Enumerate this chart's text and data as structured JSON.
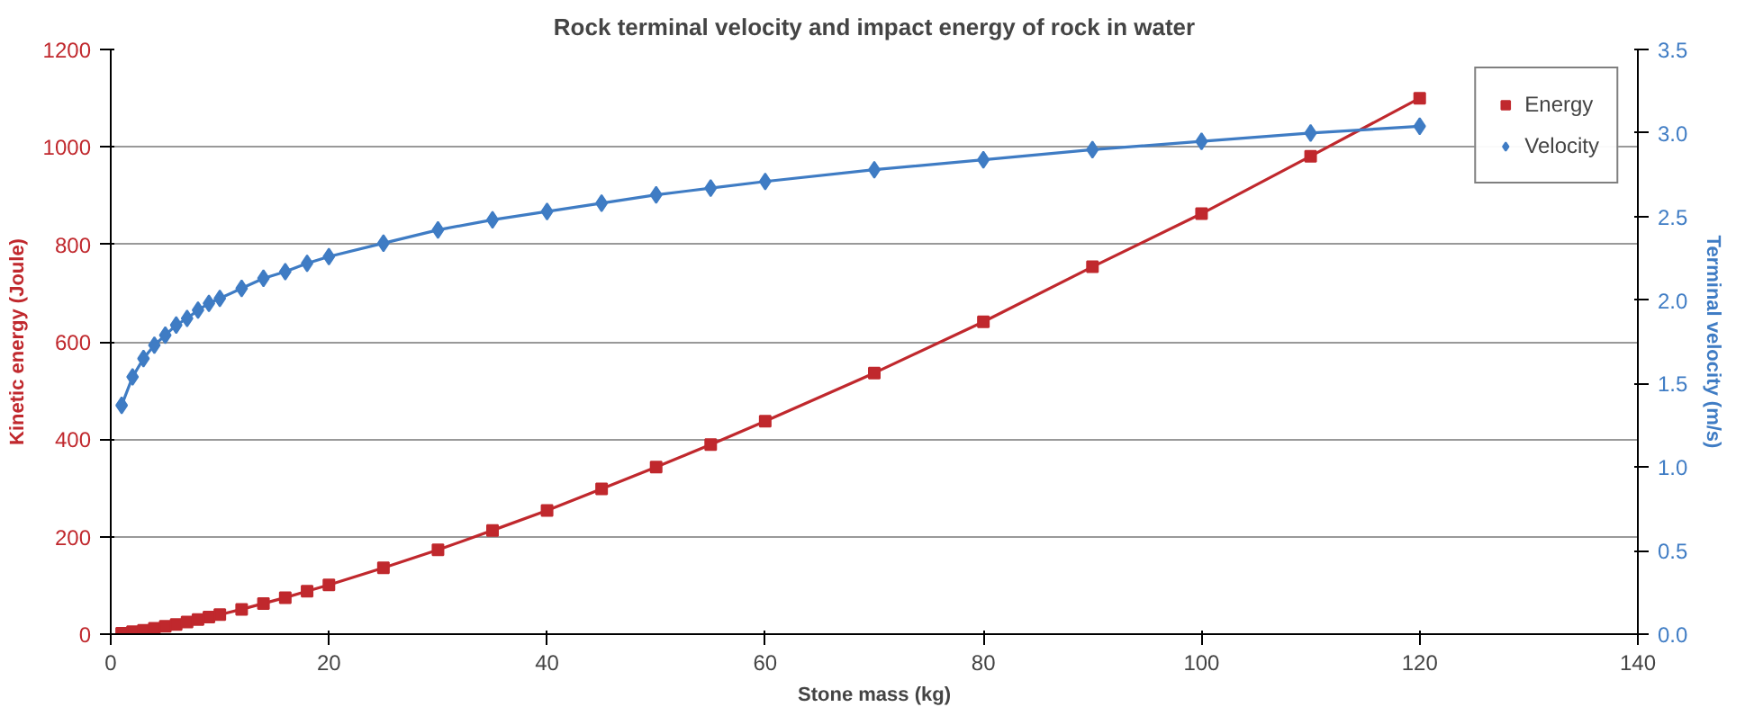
{
  "chart_data": {
    "type": "line",
    "title": "Rock terminal velocity and impact energy of rock in water",
    "xlabel": "Stone mass (kg)",
    "ylabel": "Kinetic energy (Joule)",
    "y2label": "Terminal velocity (m/s)",
    "x": [
      1,
      2,
      3,
      4,
      5,
      6,
      7,
      8,
      9,
      10,
      12,
      14,
      16,
      18,
      20,
      25,
      30,
      35,
      40,
      45,
      50,
      55,
      60,
      70,
      80,
      90,
      100,
      110,
      120
    ],
    "series": [
      {
        "name": "Energy",
        "color": "#c0282d",
        "marker": "square",
        "values": [
          2,
          5,
          8,
          12,
          16,
          20,
          25,
          30,
          35,
          40,
          51,
          63,
          75,
          88,
          101,
          136,
          173,
          213,
          254,
          298,
          343,
          389,
          437,
          536,
          641,
          754,
          863,
          981,
          1100
        ]
      },
      {
        "name": "Velocity",
        "color": "#3f7cc4",
        "marker": "diamond",
        "axis": "y2",
        "values": [
          1.37,
          1.54,
          1.65,
          1.73,
          1.79,
          1.85,
          1.89,
          1.94,
          1.98,
          2.01,
          2.07,
          2.13,
          2.17,
          2.22,
          2.26,
          2.34,
          2.42,
          2.48,
          2.53,
          2.58,
          2.63,
          2.67,
          2.71,
          2.78,
          2.84,
          2.9,
          2.95,
          3.0,
          3.04
        ]
      }
    ],
    "xlim": [
      0,
      140
    ],
    "xticks": [
      0,
      20,
      40,
      60,
      80,
      100,
      120,
      140
    ],
    "ylim": [
      0,
      1200
    ],
    "yticks": [
      0,
      200,
      400,
      600,
      800,
      1000,
      1200
    ],
    "y2lim": [
      0,
      3.5
    ],
    "y2ticks": [
      {
        "value": 0,
        "label": "0.0"
      },
      {
        "value": 0.5,
        "label": "0.5"
      },
      {
        "value": 1,
        "label": "1.0"
      },
      {
        "value": 1.5,
        "label": "1.5"
      },
      {
        "value": 2,
        "label": "2.0"
      },
      {
        "value": 2.5,
        "label": "2.5"
      },
      {
        "value": 3,
        "label": "3.0"
      },
      {
        "value": 3.5,
        "label": "3.5"
      }
    ],
    "grid": "y",
    "legend": "top right",
    "line_style": "solid"
  }
}
